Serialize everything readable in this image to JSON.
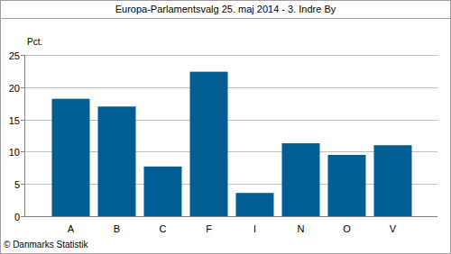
{
  "chart_data": {
    "type": "bar",
    "title": "Europa-Parlamentsvalg 25. maj 2014 - 3. Indre By",
    "y_label": "Pct.",
    "source": "© Danmarks Statistik",
    "categories": [
      "A",
      "B",
      "C",
      "F",
      "I",
      "N",
      "O",
      "V"
    ],
    "values": [
      18.2,
      17.0,
      7.7,
      22.4,
      3.6,
      11.3,
      9.5,
      11.0
    ],
    "color": "#005e92",
    "ylim": [
      0,
      25
    ],
    "yticks": [
      0,
      5,
      10,
      15,
      20,
      25
    ],
    "grid": true
  }
}
